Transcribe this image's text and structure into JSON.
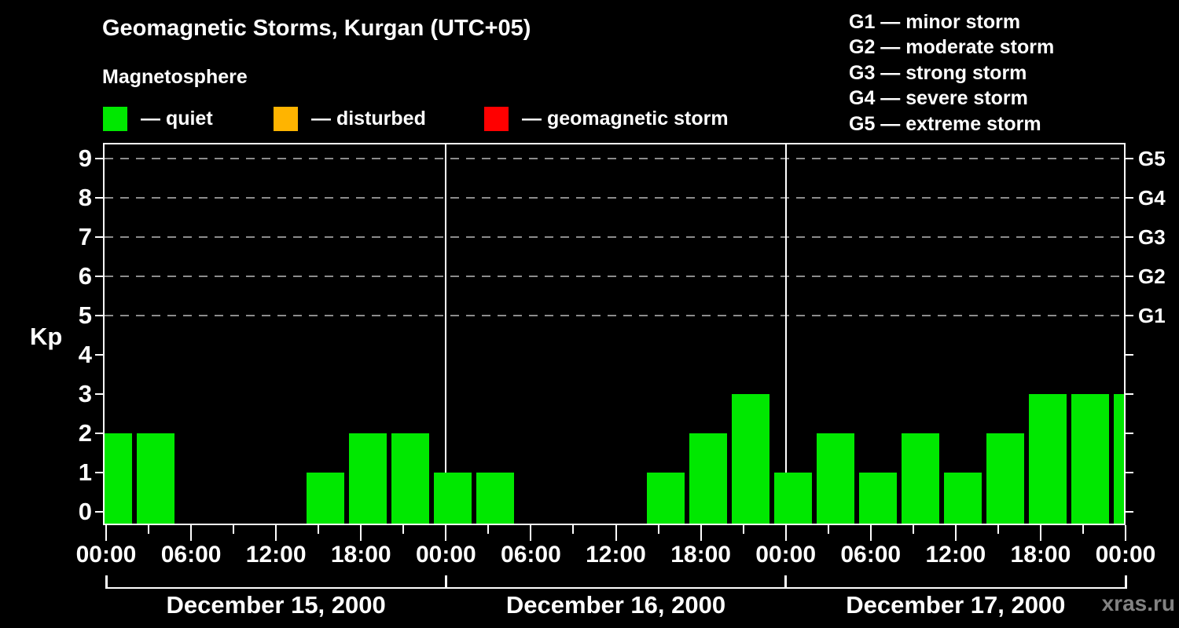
{
  "title": "Geomagnetic Storms, Kurgan (UTC+05)",
  "subtitle": "Magnetosphere",
  "legend": {
    "items": [
      {
        "name": "quiet",
        "label": "— quiet",
        "color": "#00e800",
        "x": 131
      },
      {
        "name": "disturbed",
        "label": "— disturbed",
        "color": "#ffb400",
        "x": 348
      },
      {
        "name": "geomagnetic-storm",
        "label": "— geomagnetic storm",
        "color": "#ff0000",
        "x": 616
      }
    ]
  },
  "storm_scale_legend": [
    "G1 — minor storm",
    "G2 — moderate storm",
    "G3 — strong storm",
    "G4 — severe storm",
    "G5 — extreme storm"
  ],
  "watermark": "xras.ru",
  "chart_data": {
    "type": "bar",
    "title": "Geomagnetic Storms, Kurgan (UTC+05)",
    "ylabel": "Kp",
    "ylim": [
      0,
      9.4
    ],
    "y_ticks": [
      0,
      1,
      2,
      3,
      4,
      5,
      6,
      7,
      8,
      9
    ],
    "dashed_gridlines_at_kp": [
      5,
      6,
      7,
      8,
      9
    ],
    "right_axis_g_labels": [
      {
        "kp": 5,
        "label": "G1"
      },
      {
        "kp": 6,
        "label": "G2"
      },
      {
        "kp": 7,
        "label": "G3"
      },
      {
        "kp": 8,
        "label": "G4"
      },
      {
        "kp": 9,
        "label": "G5"
      }
    ],
    "x_minor_tick_hours": 3,
    "x_major_tick_labels": [
      "00:00",
      "06:00",
      "12:00",
      "18:00"
    ],
    "closing_time_label": "00:00",
    "kp_colors": {
      "quiet": "#00e800",
      "disturbed": "#ffb400",
      "storm": "#ff0000"
    },
    "grid_color": "#8c8c8c",
    "days": [
      {
        "date": "December 15, 2000",
        "kp_3h": [
          2,
          2,
          0,
          0,
          0,
          1,
          2,
          2
        ]
      },
      {
        "date": "December 16, 2000",
        "kp_3h": [
          1,
          1,
          0,
          0,
          0,
          1,
          2,
          3
        ]
      },
      {
        "date": "December 17, 2000",
        "kp_3h": [
          1,
          2,
          1,
          2,
          1,
          2,
          3,
          3
        ]
      }
    ],
    "next_day_partial_first_kp": 3
  }
}
